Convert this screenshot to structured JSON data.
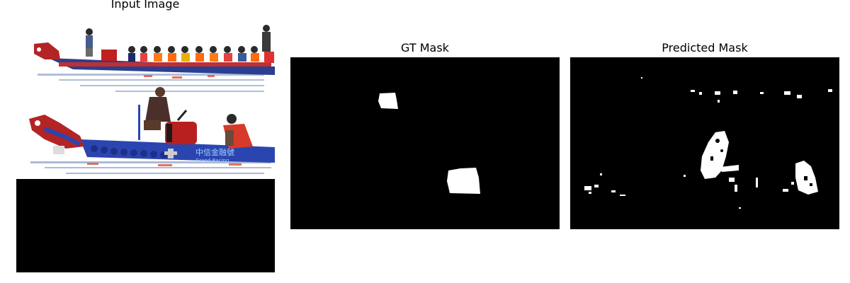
{
  "figure": {
    "panels": [
      {
        "title": "Input Image"
      },
      {
        "title": "GT Mask"
      },
      {
        "title": "Predicted Mask"
      }
    ],
    "boat_sign": {
      "chinese": "中信金融號",
      "english": "Grand Racing"
    }
  }
}
